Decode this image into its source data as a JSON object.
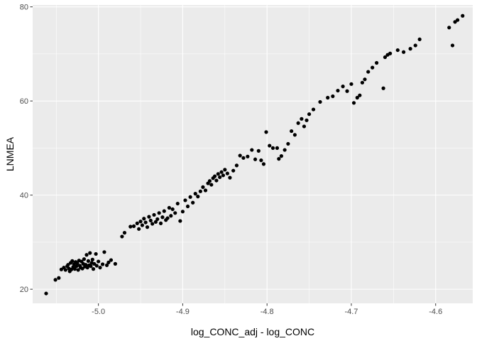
{
  "chart_data": {
    "type": "scatter",
    "xlabel": "log_CONC_adj - log_CONC",
    "ylabel": "LNMEA",
    "xlim": [
      -5.078,
      -4.556
    ],
    "ylim": [
      17.0,
      80.4
    ],
    "x_ticks": [
      -5.0,
      -4.9,
      -4.8,
      -4.7,
      -4.6
    ],
    "x_tick_labels": [
      "-5.0",
      "-4.9",
      "-4.8",
      "-4.7",
      "-4.6"
    ],
    "y_ticks": [
      20,
      40,
      60,
      80
    ],
    "y_tick_labels": [
      "20",
      "40",
      "60",
      "80"
    ],
    "grid": true,
    "colors": {
      "panel": "#ebebeb",
      "grid": "#ffffff",
      "point": "#000000"
    },
    "points": [
      [
        -5.062,
        19.1
      ],
      [
        -5.051,
        22.0
      ],
      [
        -5.047,
        22.4
      ],
      [
        -5.044,
        24.2
      ],
      [
        -5.041,
        24.6
      ],
      [
        -5.039,
        24.1
      ],
      [
        -5.037,
        24.9
      ],
      [
        -5.036,
        25.2
      ],
      [
        -5.035,
        24.4
      ],
      [
        -5.034,
        23.8
      ],
      [
        -5.033,
        25.6
      ],
      [
        -5.032,
        24.2
      ],
      [
        -5.031,
        26.0
      ],
      [
        -5.03,
        24.7
      ],
      [
        -5.029,
        25.3
      ],
      [
        -5.028,
        24.3
      ],
      [
        -5.027,
        25.8
      ],
      [
        -5.026,
        24.9
      ],
      [
        -5.025,
        25.5
      ],
      [
        -5.024,
        24.1
      ],
      [
        -5.023,
        26.1
      ],
      [
        -5.022,
        25.0
      ],
      [
        -5.021,
        24.6
      ],
      [
        -5.02,
        25.9
      ],
      [
        -5.019,
        24.4
      ],
      [
        -5.018,
        25.4
      ],
      [
        -5.017,
        26.4
      ],
      [
        -5.016,
        24.8
      ],
      [
        -5.015,
        25.2
      ],
      [
        -5.014,
        27.3
      ],
      [
        -5.013,
        24.6
      ],
      [
        -5.012,
        26.0
      ],
      [
        -5.011,
        25.1
      ],
      [
        -5.01,
        27.7
      ],
      [
        -5.009,
        24.9
      ],
      [
        -5.008,
        25.6
      ],
      [
        -5.007,
        26.3
      ],
      [
        -5.006,
        24.3
      ],
      [
        -5.005,
        25.4
      ],
      [
        -5.003,
        27.5
      ],
      [
        -5.002,
        25.0
      ],
      [
        -5.0,
        25.9
      ],
      [
        -4.998,
        24.6
      ],
      [
        -4.995,
        25.3
      ],
      [
        -4.993,
        27.9
      ],
      [
        -4.99,
        25.1
      ],
      [
        -4.988,
        25.7
      ],
      [
        -4.985,
        26.2
      ],
      [
        -4.98,
        25.4
      ],
      [
        -4.972,
        31.2
      ],
      [
        -4.969,
        32.0
      ],
      [
        -4.962,
        33.3
      ],
      [
        -4.958,
        33.4
      ],
      [
        -4.954,
        34.0
      ],
      [
        -4.952,
        32.8
      ],
      [
        -4.95,
        34.4
      ],
      [
        -4.948,
        33.6
      ],
      [
        -4.946,
        35.0
      ],
      [
        -4.944,
        34.2
      ],
      [
        -4.942,
        33.2
      ],
      [
        -4.94,
        35.4
      ],
      [
        -4.938,
        34.6
      ],
      [
        -4.936,
        33.9
      ],
      [
        -4.934,
        35.8
      ],
      [
        -4.932,
        34.3
      ],
      [
        -4.93,
        34.9
      ],
      [
        -4.928,
        36.2
      ],
      [
        -4.926,
        34.0
      ],
      [
        -4.924,
        35.3
      ],
      [
        -4.922,
        36.6
      ],
      [
        -4.92,
        34.7
      ],
      [
        -4.918,
        35.1
      ],
      [
        -4.916,
        37.3
      ],
      [
        -4.914,
        35.6
      ],
      [
        -4.912,
        37.0
      ],
      [
        -4.909,
        36.2
      ],
      [
        -4.906,
        38.2
      ],
      [
        -4.903,
        34.5
      ],
      [
        -4.9,
        36.5
      ],
      [
        -4.897,
        38.9
      ],
      [
        -4.894,
        37.6
      ],
      [
        -4.891,
        39.6
      ],
      [
        -4.888,
        38.4
      ],
      [
        -4.885,
        40.3
      ],
      [
        -4.882,
        39.7
      ],
      [
        -4.879,
        40.8
      ],
      [
        -4.876,
        41.7
      ],
      [
        -4.873,
        41.0
      ],
      [
        -4.87,
        42.5
      ],
      [
        -4.868,
        43.0
      ],
      [
        -4.866,
        42.2
      ],
      [
        -4.864,
        43.6
      ],
      [
        -4.862,
        44.0
      ],
      [
        -4.86,
        43.1
      ],
      [
        -4.858,
        44.5
      ],
      [
        -4.856,
        43.8
      ],
      [
        -4.854,
        44.9
      ],
      [
        -4.852,
        44.2
      ],
      [
        -4.85,
        45.4
      ],
      [
        -4.847,
        44.6
      ],
      [
        -4.844,
        43.7
      ],
      [
        -4.84,
        45.2
      ],
      [
        -4.836,
        46.3
      ],
      [
        -4.832,
        48.4
      ],
      [
        -4.828,
        47.9
      ],
      [
        -4.823,
        48.2
      ],
      [
        -4.818,
        49.6
      ],
      [
        -4.814,
        47.6
      ],
      [
        -4.81,
        49.4
      ],
      [
        -4.807,
        47.4
      ],
      [
        -4.804,
        46.6
      ],
      [
        -4.801,
        53.4
      ],
      [
        -4.797,
        50.5
      ],
      [
        -4.793,
        50.0
      ],
      [
        -4.788,
        50.0
      ],
      [
        -4.786,
        47.7
      ],
      [
        -4.783,
        48.3
      ],
      [
        -4.779,
        49.6
      ],
      [
        -4.775,
        50.9
      ],
      [
        -4.771,
        53.6
      ],
      [
        -4.767,
        52.8
      ],
      [
        -4.763,
        55.3
      ],
      [
        -4.759,
        56.2
      ],
      [
        -4.756,
        54.6
      ],
      [
        -4.753,
        55.9
      ],
      [
        -4.75,
        57.2
      ],
      [
        -4.745,
        58.2
      ],
      [
        -4.737,
        59.8
      ],
      [
        -4.728,
        60.7
      ],
      [
        -4.722,
        61.0
      ],
      [
        -4.716,
        62.2
      ],
      [
        -4.71,
        63.1
      ],
      [
        -4.705,
        62.1
      ],
      [
        -4.7,
        63.6
      ],
      [
        -4.697,
        59.6
      ],
      [
        -4.693,
        60.7
      ],
      [
        -4.69,
        61.2
      ],
      [
        -4.687,
        63.9
      ],
      [
        -4.684,
        64.6
      ],
      [
        -4.68,
        66.2
      ],
      [
        -4.675,
        67.1
      ],
      [
        -4.67,
        68.1
      ],
      [
        -4.662,
        62.7
      ],
      [
        -4.66,
        69.3
      ],
      [
        -4.657,
        69.8
      ],
      [
        -4.654,
        70.1
      ],
      [
        -4.645,
        70.8
      ],
      [
        -4.638,
        70.4
      ],
      [
        -4.63,
        71.1
      ],
      [
        -4.624,
        71.8
      ],
      [
        -4.619,
        73.1
      ],
      [
        -4.584,
        75.6
      ],
      [
        -4.58,
        71.8
      ],
      [
        -4.577,
        76.8
      ],
      [
        -4.574,
        77.2
      ],
      [
        -4.568,
        78.1
      ]
    ]
  }
}
